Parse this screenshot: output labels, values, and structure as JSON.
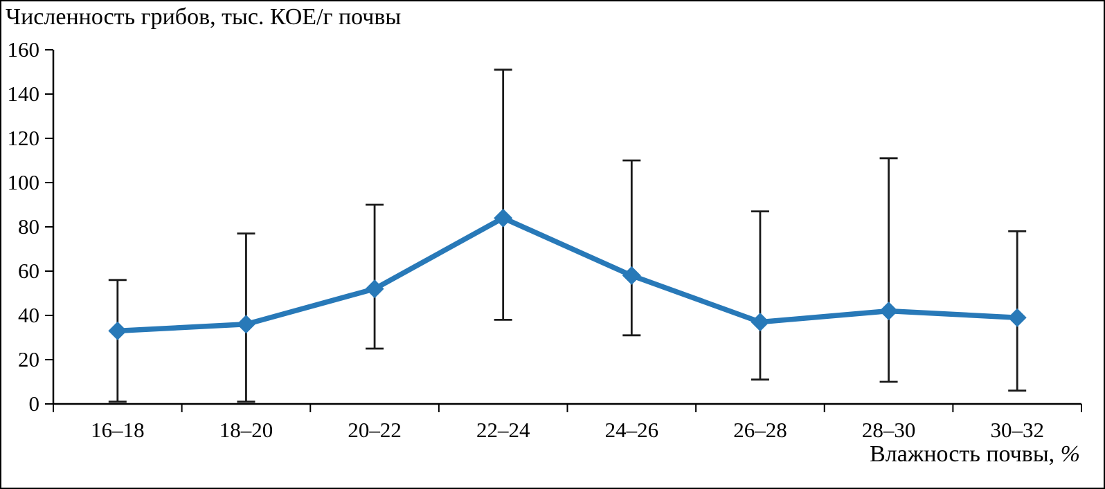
{
  "chart_data": {
    "type": "line",
    "title": "Численность грибов, тыс. КОЕ/г почвы",
    "ylabel": "Численность грибов, тыс. КОЕ/г почвы",
    "xlabel_text": "Влажность почвы, ",
    "xlabel_unit": "%",
    "categories": [
      "16–18",
      "18–20",
      "20–22",
      "22–24",
      "24–26",
      "26–28",
      "28–30",
      "30–32"
    ],
    "values": [
      33,
      36,
      52,
      84,
      58,
      37,
      42,
      39
    ],
    "error_upper": [
      56,
      77,
      90,
      151,
      110,
      87,
      111,
      78
    ],
    "error_lower": [
      1,
      1,
      25,
      38,
      31,
      11,
      10,
      6
    ],
    "ylim": [
      0,
      160
    ],
    "ytick_step": 20,
    "yticks": [
      0,
      20,
      40,
      60,
      80,
      100,
      120,
      140,
      160
    ],
    "grid": false,
    "legend": "none",
    "line_color": "#2879b8",
    "error_color": "#1a1a1a",
    "marker": "diamond"
  }
}
